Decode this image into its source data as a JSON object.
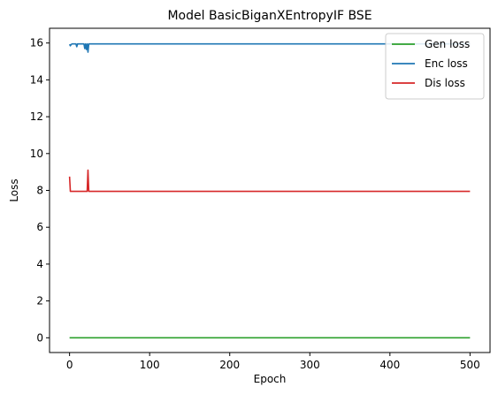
{
  "chart_data": {
    "type": "line",
    "title": "Model BasicBiganXEntropyIF BSE",
    "xlabel": "Epoch",
    "ylabel": "Loss",
    "xlim": [
      -25,
      525
    ],
    "ylim": [
      -0.8,
      16.8
    ],
    "xticks": [
      0,
      100,
      200,
      300,
      400,
      500
    ],
    "yticks": [
      0,
      2,
      4,
      6,
      8,
      10,
      12,
      14,
      16
    ],
    "grid": false,
    "legend_position": "top-right",
    "series": [
      {
        "name": "Gen loss",
        "color": "#2ca02c",
        "x": [
          0,
          500
        ],
        "y": [
          0.0,
          0.0
        ]
      },
      {
        "name": "Enc loss",
        "color": "#1f77b4",
        "x": [
          0,
          1,
          2,
          3,
          5,
          8,
          9,
          10,
          11,
          12,
          15,
          18,
          19,
          20,
          21,
          22,
          23,
          24,
          25,
          30,
          500
        ],
        "y": [
          15.93,
          15.85,
          15.92,
          15.95,
          15.95,
          15.95,
          15.8,
          15.95,
          15.95,
          15.95,
          15.95,
          15.95,
          15.7,
          15.95,
          15.65,
          15.95,
          15.5,
          15.95,
          15.95,
          15.95,
          15.95
        ]
      },
      {
        "name": "Dis loss",
        "color": "#d62728",
        "x": [
          0,
          1,
          2,
          22,
          23,
          24,
          25,
          500
        ],
        "y": [
          8.75,
          7.95,
          7.95,
          7.95,
          9.1,
          7.95,
          7.95,
          7.95
        ]
      }
    ]
  }
}
